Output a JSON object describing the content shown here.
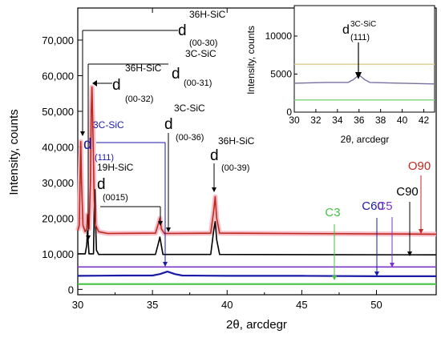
{
  "chart_data": [
    {
      "type": "line",
      "xlabel": "2θ, arcdegr",
      "ylabel": "Intensity, counts",
      "xlim": [
        30,
        54
      ],
      "ylim": [
        -1500,
        79000
      ],
      "x_ticks": [
        "30",
        "35",
        "40",
        "45",
        "50"
      ],
      "y_ticks": [
        "0",
        "10,000",
        "20,000",
        "30,000",
        "40,000",
        "50,000",
        "60,000",
        "70,000"
      ],
      "series": [
        {
          "name": "O90",
          "color": "#c0281e",
          "x": [
            30.0,
            30.1,
            30.15,
            30.2,
            30.25,
            30.35,
            30.5,
            30.6,
            30.65,
            30.75,
            30.85,
            30.9,
            30.95,
            31.0,
            31.1,
            31.2,
            31.4,
            32.0,
            35.2,
            35.4,
            35.5,
            35.6,
            35.8,
            38.9,
            39.1,
            39.2,
            39.3,
            39.5,
            54.0
          ],
          "y": [
            16500,
            18000,
            30000,
            41500,
            30000,
            18000,
            16200,
            17000,
            21000,
            17000,
            30000,
            50000,
            56800,
            48000,
            25000,
            18000,
            16200,
            15700,
            15800,
            18500,
            20000,
            17000,
            15700,
            15800,
            22000,
            26000,
            20000,
            15800,
            15500
          ]
        },
        {
          "name": "C90",
          "color": "#000000",
          "x": [
            30.0,
            30.5,
            30.6,
            30.65,
            30.75,
            31.05,
            31.1,
            31.15,
            31.2,
            31.25,
            31.4,
            35.2,
            35.4,
            35.5,
            35.7,
            38.9,
            39.1,
            39.2,
            39.3,
            39.5,
            54.0
          ],
          "y": [
            10000,
            10000,
            12500,
            16500,
            10000,
            10000,
            21000,
            28000,
            18000,
            11000,
            9800,
            9800,
            13000,
            14700,
            9800,
            9800,
            16500,
            19000,
            14000,
            9800,
            9700
          ]
        },
        {
          "name": "C5",
          "color": "#7b35c9",
          "x": [
            30.0,
            54.0
          ],
          "y": [
            6300,
            6300
          ]
        },
        {
          "name": "C60",
          "color": "#1a1aa8",
          "x": [
            30.0,
            33.0,
            35.0,
            35.5,
            36.0,
            36.5,
            37.0,
            40.0,
            45.0,
            50.0,
            54.0
          ],
          "y": [
            3800,
            3900,
            3900,
            4300,
            5000,
            4300,
            3900,
            3800,
            3800,
            3700,
            3700
          ]
        },
        {
          "name": "C3",
          "color": "#45c245",
          "x": [
            30.0,
            54.0
          ],
          "y": [
            1500,
            1500
          ]
        }
      ],
      "series_labels": [
        "O90",
        "C90",
        "C5",
        "C60",
        "C3"
      ],
      "annotations": [
        {
          "label": "36H-SiC",
          "hkl": "(00-30)"
        },
        {
          "label": "3C-SiC",
          "hkl": "(00-31)"
        },
        {
          "label": "36H-SiC",
          "hkl": "(00-32)"
        },
        {
          "label": "3C-SiC",
          "hkl": "(00-36)"
        },
        {
          "label": "36H-SiC",
          "hkl": "(00-39)"
        },
        {
          "label": "3C-SiC",
          "hkl": "(111)"
        },
        {
          "label": "19H-SiC",
          "hkl": "(0015)"
        }
      ],
      "annotation_letter": "d"
    },
    {
      "type": "line",
      "xlabel": "2θ, arcdegr",
      "ylabel": "Intensity, counts",
      "xlim": [
        30,
        43
      ],
      "ylim": [
        0,
        14000
      ],
      "x_ticks": [
        "30",
        "32",
        "34",
        "36",
        "38",
        "40",
        "42"
      ],
      "y_ticks": [
        "0",
        "5000",
        "10000"
      ],
      "annotation": {
        "letter": "d",
        "phase": "3C-SiC",
        "hkl": "(111)"
      },
      "series": [
        {
          "name": "C5",
          "color": "#d9cd8e",
          "x": [
            30,
            43
          ],
          "y": [
            6300,
            6300
          ]
        },
        {
          "name": "C60",
          "color": "#7a6fa0",
          "x": [
            30.0,
            33.0,
            35.0,
            35.5,
            36.0,
            36.5,
            37.0,
            40.0,
            43.0
          ],
          "y": [
            3800,
            3900,
            3900,
            4300,
            4900,
            4300,
            3900,
            3800,
            3700
          ]
        },
        {
          "name": "C3",
          "color": "#7ed27e",
          "x": [
            30,
            43
          ],
          "y": [
            1600,
            1600
          ]
        }
      ]
    }
  ]
}
